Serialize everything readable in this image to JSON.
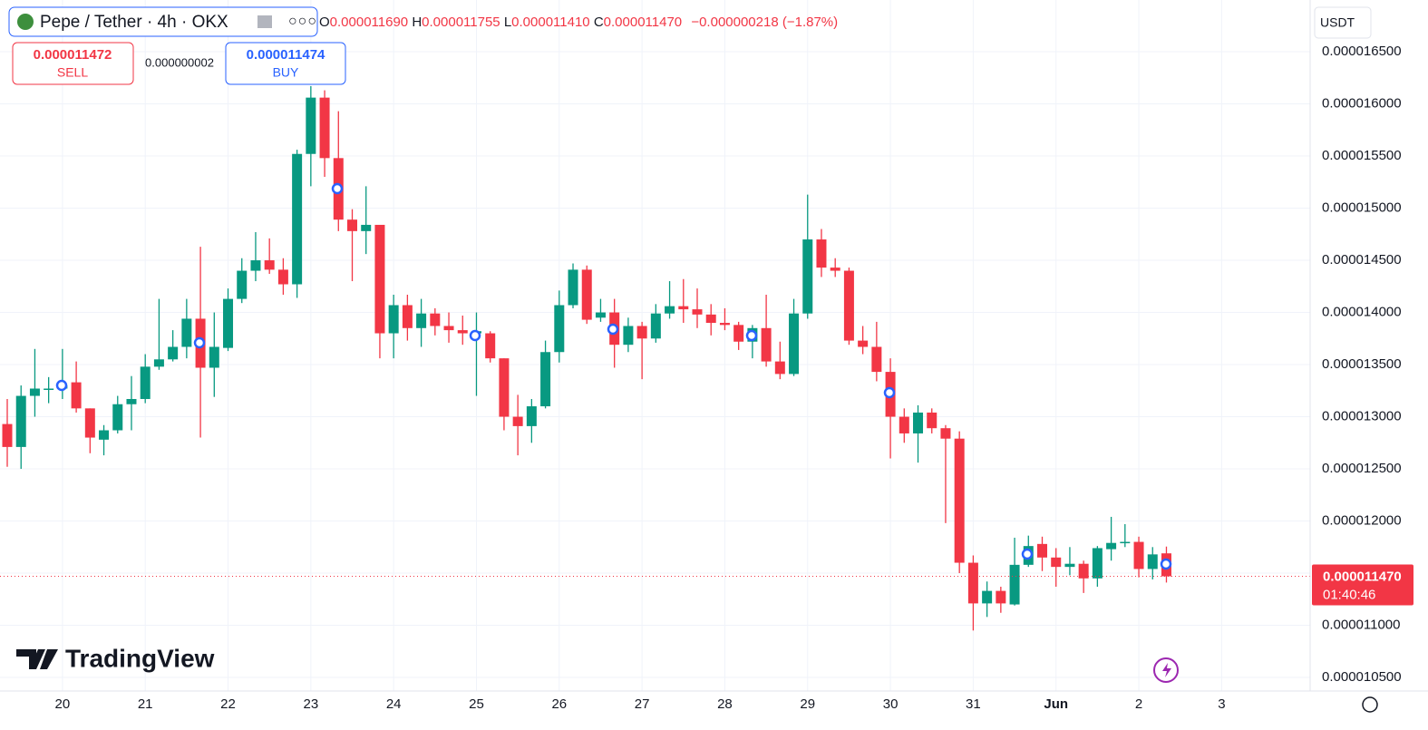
{
  "chart_data": {
    "type": "candlestick",
    "header": {
      "symbol": "Pepe / Tether · 4h · OKX",
      "ohlc": [
        {
          "key": "O",
          "value": "0.000011690"
        },
        {
          "key": "H",
          "value": "0.000011755"
        },
        {
          "key": "L",
          "value": "0.000011410"
        },
        {
          "key": "C",
          "value": "0.000011470"
        }
      ],
      "change": "−0.000000218 (−1.87%)"
    },
    "sell": {
      "price": "0.000011472",
      "label": "SELL"
    },
    "spread": "0.000000002",
    "buy": {
      "price": "0.000011474",
      "label": "BUY"
    },
    "currency": "USDT",
    "logo": "TradingView",
    "price_tag": {
      "value": 1.147e-05,
      "label": "0.000011470",
      "countdown": "01:40:46"
    },
    "up_color": "#089981",
    "down_color": "#f23645",
    "grid": true,
    "categories": [
      null,
      null,
      null,
      null,
      "20",
      null,
      null,
      null,
      null,
      null,
      "21",
      null,
      null,
      null,
      null,
      null,
      "22",
      null,
      null,
      null,
      null,
      null,
      "23",
      null,
      null,
      null,
      null,
      null,
      "24",
      null,
      null,
      null,
      null,
      null,
      "25",
      null,
      null,
      null,
      null,
      null,
      "26",
      null,
      null,
      null,
      null,
      null,
      "27",
      null,
      null,
      null,
      null,
      null,
      "28",
      null,
      null,
      null,
      null,
      null,
      "29",
      null,
      null,
      null,
      null,
      null,
      "30",
      null,
      null,
      null,
      null,
      null,
      "31",
      null,
      null,
      null,
      null,
      null,
      "Jun",
      null,
      null,
      null,
      null,
      null,
      "2",
      null,
      null,
      null,
      null,
      null,
      "3"
    ],
    "open": [
      1.293e-05,
      1.271e-05,
      1.32e-05,
      1.327e-05,
      1.327e-05,
      1.333e-05,
      1.308e-05,
      1.278e-05,
      1.287e-05,
      1.312e-05,
      1.317e-05,
      1.348e-05,
      1.355e-05,
      1.367e-05,
      1.394e-05,
      1.347e-05,
      1.366e-05,
      1.413e-05,
      1.44e-05,
      1.45e-05,
      1.441e-05,
      1.427e-05,
      1.552e-05,
      1.606e-05,
      1.548e-05,
      1.489e-05,
      1.478e-05,
      1.484e-05,
      1.38e-05,
      1.407e-05,
      1.385e-05,
      1.399e-05,
      1.387e-05,
      1.383e-05,
      1.38e-05,
      1.38e-05,
      1.356e-05,
      1.3e-05,
      1.291e-05,
      1.31e-05,
      1.362e-05,
      1.407e-05,
      1.441e-05,
      1.395e-05,
      1.4e-05,
      1.369e-05,
      1.387e-05,
      1.375e-05,
      1.399e-05,
      1.406e-05,
      1.403e-05,
      1.398e-05,
      1.39e-05,
      1.388e-05,
      1.372e-05,
      1.385e-05,
      1.353e-05,
      1.341e-05,
      1.399e-05,
      1.47e-05,
      1.443e-05,
      1.44e-05,
      1.373e-05,
      1.367e-05,
      1.343e-05,
      1.3e-05,
      1.284e-05,
      1.304e-05,
      1.289e-05,
      1.279e-05,
      1.16e-05,
      1.121e-05,
      1.133e-05,
      1.12e-05,
      1.158e-05,
      1.178e-05,
      1.165e-05,
      1.156e-05,
      1.159e-05,
      1.145e-05,
      1.173e-05,
      1.179e-05,
      1.18e-05,
      1.154e-05,
      1.169e-05,
      null,
      null,
      null,
      null
    ],
    "high": [
      1.317e-05,
      1.33e-05,
      1.365e-05,
      1.338e-05,
      1.365e-05,
      1.353e-05,
      1.308e-05,
      1.292e-05,
      1.32e-05,
      1.339e-05,
      1.36e-05,
      1.413e-05,
      1.383e-05,
      1.413e-05,
      1.463e-05,
      1.4e-05,
      1.423e-05,
      1.452e-05,
      1.477e-05,
      1.471e-05,
      1.452e-05,
      1.556e-05,
      1.617e-05,
      1.613e-05,
      1.593e-05,
      1.499e-05,
      1.521e-05,
      1.484e-05,
      1.417e-05,
      1.417e-05,
      1.413e-05,
      1.404e-05,
      1.4e-05,
      1.397e-05,
      1.4e-05,
      1.382e-05,
      1.356e-05,
      1.321e-05,
      1.317e-05,
      1.373e-05,
      1.421e-05,
      1.447e-05,
      1.445e-05,
      1.413e-05,
      1.413e-05,
      1.395e-05,
      1.391e-05,
      1.408e-05,
      1.43e-05,
      1.432e-05,
      1.423e-05,
      1.408e-05,
      1.404e-05,
      1.391e-05,
      1.388e-05,
      1.417e-05,
      1.372e-05,
      1.413e-05,
      1.513e-05,
      1.48e-05,
      1.452e-05,
      1.443e-05,
      1.387e-05,
      1.391e-05,
      1.356e-05,
      1.308e-05,
      1.311e-05,
      1.308e-05,
      1.292e-05,
      1.286e-05,
      1.167e-05,
      1.142e-05,
      1.137e-05,
      1.184e-05,
      1.186e-05,
      1.185e-05,
      1.174e-05,
      1.175e-05,
      1.162e-05,
      1.176e-05,
      1.204e-05,
      1.197e-05,
      1.185e-05,
      1.175e-05,
      1.1755e-05,
      null,
      null,
      null,
      null
    ],
    "low": [
      1.252e-05,
      1.25e-05,
      1.3e-05,
      1.313e-05,
      1.317e-05,
      1.304e-05,
      1.265e-05,
      1.263e-05,
      1.284e-05,
      1.287e-05,
      1.313e-05,
      1.345e-05,
      1.353e-05,
      1.356e-05,
      1.28e-05,
      1.319e-05,
      1.363e-05,
      1.409e-05,
      1.43e-05,
      1.437e-05,
      1.417e-05,
      1.414e-05,
      1.521e-05,
      1.53e-05,
      1.478e-05,
      1.43e-05,
      1.456e-05,
      1.356e-05,
      1.356e-05,
      1.373e-05,
      1.367e-05,
      1.378e-05,
      1.371e-05,
      1.369e-05,
      1.32e-05,
      1.352e-05,
      1.287e-05,
      1.263e-05,
      1.275e-05,
      1.308e-05,
      1.352e-05,
      1.404e-05,
      1.389e-05,
      1.391e-05,
      1.347e-05,
      1.362e-05,
      1.336e-05,
      1.371e-05,
      1.394e-05,
      1.39e-05,
      1.385e-05,
      1.378e-05,
      1.383e-05,
      1.364e-05,
      1.356e-05,
      1.348e-05,
      1.336e-05,
      1.339e-05,
      1.394e-05,
      1.434e-05,
      1.434e-05,
      1.369e-05,
      1.36e-05,
      1.334e-05,
      1.26e-05,
      1.275e-05,
      1.256e-05,
      1.284e-05,
      1.198e-05,
      1.15e-05,
      1.095e-05,
      1.108e-05,
      1.112e-05,
      1.119e-05,
      1.156e-05,
      1.152e-05,
      1.137e-05,
      1.148e-05,
      1.131e-05,
      1.137e-05,
      1.162e-05,
      1.175e-05,
      1.146e-05,
      1.144e-05,
      1.141e-05,
      null,
      null,
      null,
      null
    ],
    "close": [
      1.271e-05,
      1.32e-05,
      1.327e-05,
      1.327e-05,
      1.33e-05,
      1.308e-05,
      1.28e-05,
      1.287e-05,
      1.312e-05,
      1.317e-05,
      1.348e-05,
      1.355e-05,
      1.367e-05,
      1.394e-05,
      1.347e-05,
      1.367e-05,
      1.413e-05,
      1.44e-05,
      1.45e-05,
      1.441e-05,
      1.427e-05,
      1.552e-05,
      1.606e-05,
      1.548e-05,
      1.489e-05,
      1.478e-05,
      1.484e-05,
      1.38e-05,
      1.407e-05,
      1.385e-05,
      1.399e-05,
      1.387e-05,
      1.383e-05,
      1.38e-05,
      1.382e-05,
      1.356e-05,
      1.3e-05,
      1.291e-05,
      1.31e-05,
      1.362e-05,
      1.407e-05,
      1.441e-05,
      1.393e-05,
      1.4e-05,
      1.369e-05,
      1.387e-05,
      1.375e-05,
      1.399e-05,
      1.406e-05,
      1.403e-05,
      1.398e-05,
      1.39e-05,
      1.388e-05,
      1.372e-05,
      1.385e-05,
      1.353e-05,
      1.341e-05,
      1.399e-05,
      1.47e-05,
      1.443e-05,
      1.44e-05,
      1.373e-05,
      1.367e-05,
      1.343e-05,
      1.3e-05,
      1.284e-05,
      1.304e-05,
      1.289e-05,
      1.279e-05,
      1.16e-05,
      1.121e-05,
      1.133e-05,
      1.121e-05,
      1.158e-05,
      1.176e-05,
      1.165e-05,
      1.156e-05,
      1.159e-05,
      1.145e-05,
      1.174e-05,
      1.179e-05,
      1.18e-05,
      1.154e-05,
      1.168e-05,
      1.147e-05,
      null,
      null,
      null,
      null
    ],
    "ylim": [
      1.037e-05,
      1.6996e-05
    ],
    "yticks": [
      {
        "value": 1.05e-05,
        "label": "0.000010500"
      },
      {
        "value": 1.1e-05,
        "label": "0.000011000"
      },
      {
        "value": 1.15e-05,
        "label": "0.000011500"
      },
      {
        "value": 1.2e-05,
        "label": "0.000012000"
      },
      {
        "value": 1.25e-05,
        "label": "0.000012500"
      },
      {
        "value": 1.3e-05,
        "label": "0.000013000"
      },
      {
        "value": 1.35e-05,
        "label": "0.000013500"
      },
      {
        "value": 1.4e-05,
        "label": "0.000014000"
      },
      {
        "value": 1.45e-05,
        "label": "0.000014500"
      },
      {
        "value": 1.5e-05,
        "label": "0.000015000"
      },
      {
        "value": 1.55e-05,
        "label": "0.000015500"
      },
      {
        "value": 1.6e-05,
        "label": "0.000016000"
      },
      {
        "value": 1.65e-05,
        "label": "0.000016500"
      }
    ]
  }
}
